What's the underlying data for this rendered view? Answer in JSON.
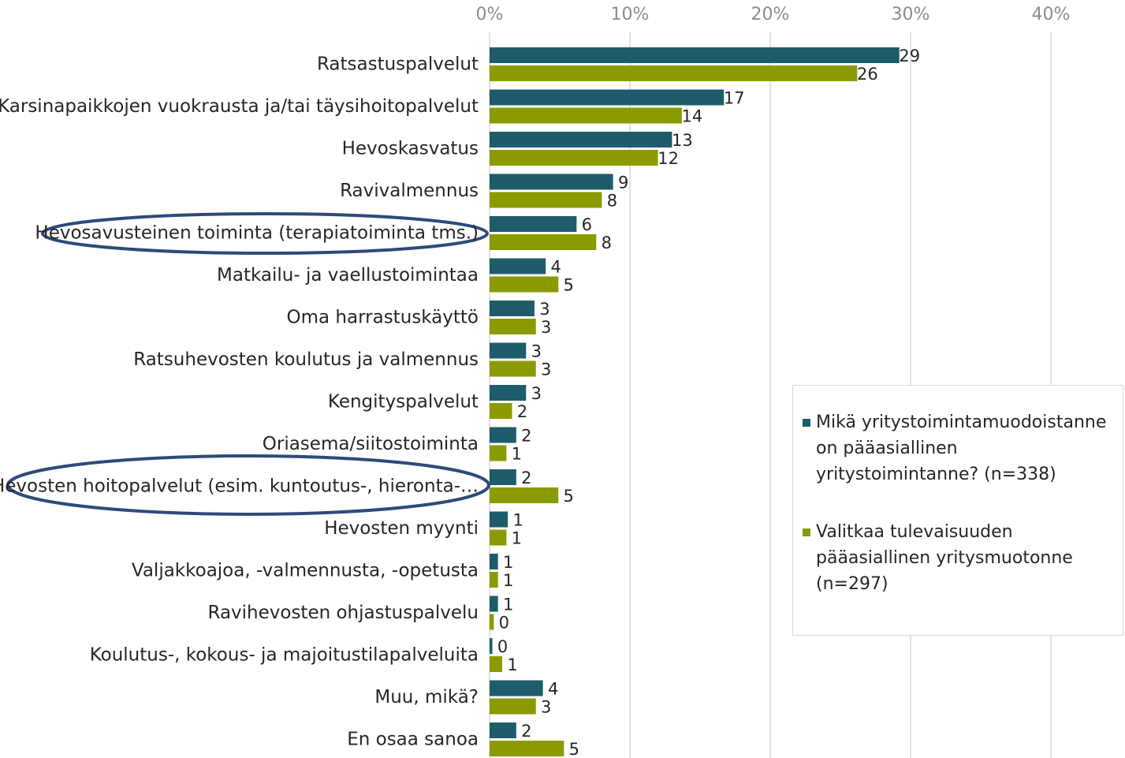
{
  "chart_data": {
    "type": "hbar",
    "categories": [
      "Ratsastuspalvelut",
      "Karsinapaikkojen vuokrausta ja/tai täysihoitopalvelut",
      "Hevoskasvatus",
      "Ravivalmennus",
      "Hevosavusteinen toiminta (terapiatoiminta tms.)",
      "Matkailu- ja vaellustoimintaa",
      "Oma harrastuskäyttö",
      "Ratsuhevosten koulutus ja valmennus",
      "Kengityspalvelut",
      "Oriasema/siitostoiminta",
      "Hevosten hoitopalvelut (esim. kuntoutus-, hieronta-…",
      "Hevosten myynti",
      "Valjakkoajoa, -valmennusta, -opetusta",
      "Ravihevosten ohjastuspalvelu",
      "Koulutus-, kokous- ja majoitustilapalveluita",
      "Muu, mikä?",
      "En osaa sanoa"
    ],
    "series": [
      {
        "name": "Mikä yritystoimintamuodoistanne on pääasiallinen yritystoimintanne? (n=338)",
        "color": "#1f5c6b",
        "values": [
          29.2,
          16.7,
          13.0,
          8.8,
          6.2,
          4.0,
          3.2,
          2.6,
          2.6,
          1.9,
          1.9,
          1.3,
          0.6,
          0.6,
          0.2,
          3.8,
          1.9
        ],
        "value_labels": [
          "29",
          "17",
          "13",
          "9",
          "6",
          "4",
          "3",
          "3",
          "3",
          "2",
          "2",
          "1",
          "1",
          "1",
          "0",
          "4",
          "2"
        ]
      },
      {
        "name": "Valitkaa tulevaisuuden pääasiallinen yritysmuotonne (n=297)",
        "color": "#8a9a01",
        "values": [
          26.2,
          13.7,
          12.0,
          8.0,
          7.6,
          4.9,
          3.3,
          3.3,
          1.6,
          1.2,
          4.9,
          1.2,
          0.6,
          0.3,
          0.9,
          3.3,
          5.3
        ],
        "value_labels": [
          "26",
          "14",
          "12",
          "8",
          "8",
          "5",
          "3",
          "3",
          "2",
          "1",
          "5",
          "1",
          "1",
          "0",
          "1",
          "3",
          "5"
        ]
      }
    ],
    "xlim": [
      0,
      40
    ],
    "xticks": [
      {
        "value": 0,
        "label": "0%"
      },
      {
        "value": 10,
        "label": "10%"
      },
      {
        "value": 20,
        "label": "20%"
      },
      {
        "value": 30,
        "label": "30%"
      },
      {
        "value": 40,
        "label": "40%"
      }
    ],
    "grid": true,
    "legend": "right"
  }
}
